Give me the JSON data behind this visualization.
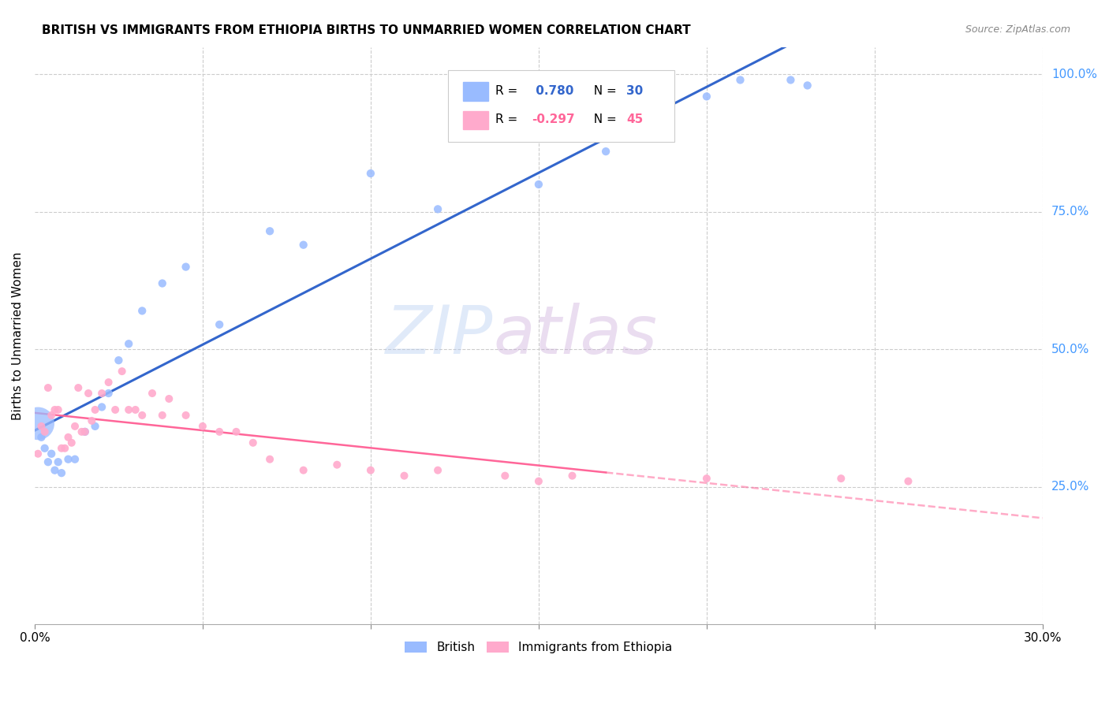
{
  "title": "BRITISH VS IMMIGRANTS FROM ETHIOPIA BIRTHS TO UNMARRIED WOMEN CORRELATION CHART",
  "source": "Source: ZipAtlas.com",
  "ylabel": "Births to Unmarried Women",
  "R_british": 0.78,
  "N_british": 30,
  "R_ethiopia": -0.297,
  "N_ethiopia": 45,
  "color_british": "#99bbff",
  "color_ethiopia": "#ffaacc",
  "color_british_line": "#3366cc",
  "color_ethiopia_line": "#ff6699",
  "legend_label_british": "British",
  "legend_label_ethiopia": "Immigrants from Ethiopia",
  "xlim": [
    0.0,
    0.3
  ],
  "ylim": [
    0.0,
    1.05
  ],
  "yticks": [
    0.25,
    0.5,
    0.75,
    1.0
  ],
  "ytick_labels": [
    "25.0%",
    "50.0%",
    "75.0%",
    "100.0%"
  ],
  "xtick_labels_left": "0.0%",
  "xtick_labels_right": "30.0%",
  "british_x": [
    0.001,
    0.002,
    0.003,
    0.004,
    0.005,
    0.006,
    0.007,
    0.008,
    0.01,
    0.012,
    0.015,
    0.018,
    0.02,
    0.022,
    0.025,
    0.028,
    0.032,
    0.038,
    0.045,
    0.055,
    0.07,
    0.08,
    0.1,
    0.12,
    0.15,
    0.17,
    0.2,
    0.21,
    0.225,
    0.23
  ],
  "british_y": [
    0.365,
    0.34,
    0.32,
    0.295,
    0.31,
    0.28,
    0.295,
    0.275,
    0.3,
    0.3,
    0.35,
    0.36,
    0.395,
    0.42,
    0.48,
    0.51,
    0.57,
    0.62,
    0.65,
    0.545,
    0.715,
    0.69,
    0.82,
    0.755,
    0.8,
    0.86,
    0.96,
    0.99,
    0.99,
    0.98
  ],
  "british_sizes": [
    40,
    40,
    40,
    40,
    40,
    40,
    40,
    40,
    40,
    40,
    40,
    40,
    40,
    40,
    40,
    40,
    40,
    40,
    40,
    40,
    40,
    40,
    40,
    40,
    40,
    40,
    40,
    40,
    40,
    40
  ],
  "british_large_idx": 0,
  "british_large_size": 900,
  "ethiopia_x": [
    0.001,
    0.002,
    0.003,
    0.004,
    0.005,
    0.006,
    0.007,
    0.008,
    0.009,
    0.01,
    0.011,
    0.012,
    0.013,
    0.014,
    0.015,
    0.016,
    0.017,
    0.018,
    0.02,
    0.022,
    0.024,
    0.026,
    0.028,
    0.03,
    0.032,
    0.035,
    0.038,
    0.04,
    0.045,
    0.05,
    0.055,
    0.06,
    0.065,
    0.07,
    0.08,
    0.09,
    0.1,
    0.11,
    0.12,
    0.14,
    0.15,
    0.16,
    0.2,
    0.24,
    0.26
  ],
  "ethiopia_y": [
    0.31,
    0.36,
    0.35,
    0.43,
    0.38,
    0.39,
    0.39,
    0.32,
    0.32,
    0.34,
    0.33,
    0.36,
    0.43,
    0.35,
    0.35,
    0.42,
    0.37,
    0.39,
    0.42,
    0.44,
    0.39,
    0.46,
    0.39,
    0.39,
    0.38,
    0.42,
    0.38,
    0.41,
    0.38,
    0.36,
    0.35,
    0.35,
    0.33,
    0.3,
    0.28,
    0.29,
    0.28,
    0.27,
    0.28,
    0.27,
    0.26,
    0.27,
    0.265,
    0.265,
    0.26
  ],
  "watermark_zip": "ZIP",
  "watermark_atlas": "atlas"
}
